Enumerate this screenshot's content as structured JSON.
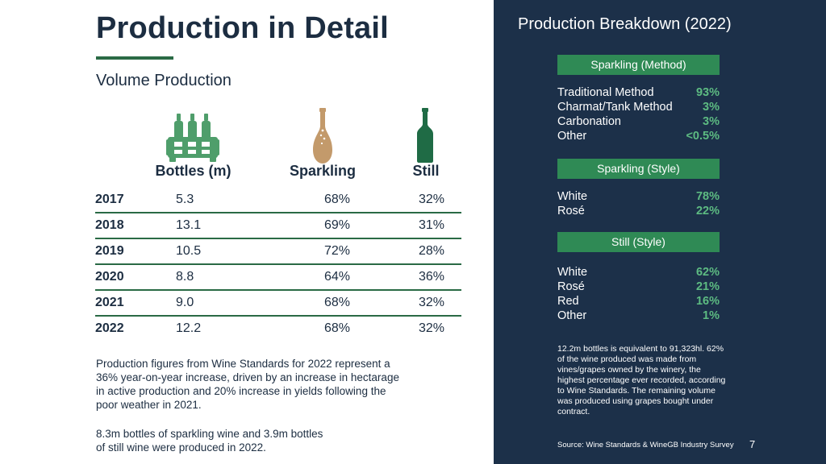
{
  "page": {
    "title": "Production in Detail",
    "subtitle": "Volume Production",
    "page_number": "7"
  },
  "table": {
    "headers": {
      "bottles": "Bottles (m)",
      "sparkling": "Sparkling",
      "still": "Still"
    },
    "icons": {
      "bottles": "bottle-crate-icon",
      "sparkling": "sparkling-bottle-icon",
      "still": "still-wine-bottle-icon"
    },
    "rows": [
      {
        "year": "2017",
        "bottles": "5.3",
        "sparkling": "68%",
        "still": "32%"
      },
      {
        "year": "2018",
        "bottles": "13.1",
        "sparkling": "69%",
        "still": "31%"
      },
      {
        "year": "2019",
        "bottles": "10.5",
        "sparkling": "72%",
        "still": "28%"
      },
      {
        "year": "2020",
        "bottles": "8.8",
        "sparkling": "64%",
        "still": "36%"
      },
      {
        "year": "2021",
        "bottles": "9.0",
        "sparkling": "68%",
        "still": "32%"
      },
      {
        "year": "2022",
        "bottles": "12.2",
        "sparkling": "68%",
        "still": "32%"
      }
    ]
  },
  "notes": {
    "paragraph1": "Production figures from Wine Standards for 2022 represent a 36% year-on-year increase, driven by an increase in hectarage in active production and 20% increase in yields following the poor weather in 2021.",
    "paragraph2": "8.3m bottles of sparkling wine and 3.9m bottles of still wine were produced in 2022."
  },
  "breakdown": {
    "title": "Production Breakdown (2022)",
    "sections": [
      {
        "heading": "Sparkling (Method)",
        "items": [
          {
            "label": "Traditional Method",
            "value": "93%"
          },
          {
            "label": "Charmat/Tank Method",
            "value": "3%"
          },
          {
            "label": "Carbonation",
            "value": "3%"
          },
          {
            "label": "Other",
            "value": "<0.5%"
          }
        ]
      },
      {
        "heading": "Sparkling (Style)",
        "items": [
          {
            "label": "White",
            "value": "78%"
          },
          {
            "label": "Rosé",
            "value": "22%"
          }
        ]
      },
      {
        "heading": "Still (Style)",
        "items": [
          {
            "label": "White",
            "value": "62%"
          },
          {
            "label": "Rosé",
            "value": "21%"
          },
          {
            "label": "Red",
            "value": "16%"
          },
          {
            "label": "Other",
            "value": "1%"
          }
        ]
      }
    ],
    "note": "12.2m bottles is equivalent to 91,323hl. 62% of the wine produced was made from vines/grapes owned by the winery, the highest percentage ever recorded, according to Wine Standards. The remaining volume was produced using grapes bought under contract.",
    "source": "Source: Wine Standards & WineGB Industry Survey"
  },
  "colors": {
    "navy": "#1c3049",
    "green": "#2f8a55",
    "accent_value": "#5dbb82",
    "dark_text": "#1c2d41",
    "bottle_tan": "#c39a6b"
  }
}
